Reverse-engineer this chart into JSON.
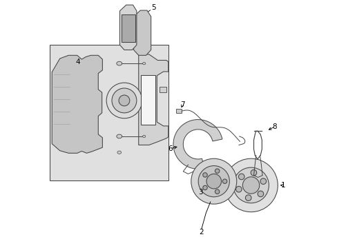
{
  "background_color": "#ffffff",
  "fig_width": 4.89,
  "fig_height": 3.6,
  "dpi": 100,
  "plate_color": "#e2e2e2",
  "edge_color": "#444444",
  "line_color": "#444444"
}
